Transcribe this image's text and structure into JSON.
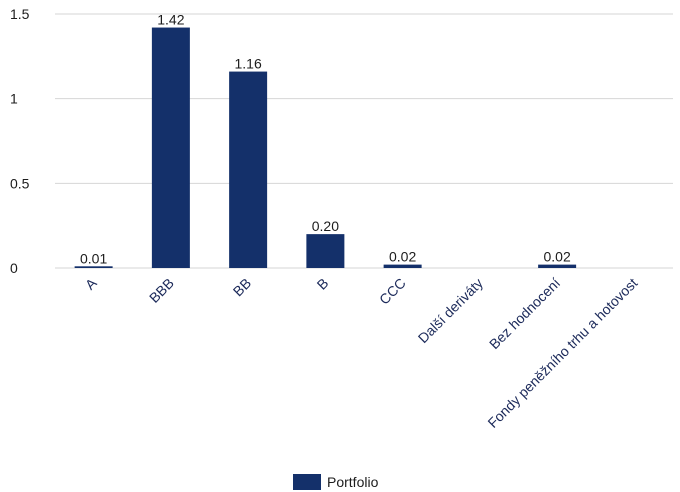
{
  "chart_data": {
    "type": "bar",
    "categories": [
      "A",
      "BBB",
      "BB",
      "B",
      "CCC",
      "Další deriváty",
      "Bez hodnocení",
      "Fondy peněžního trhu a hotovost"
    ],
    "series": [
      {
        "name": "Portfolio",
        "values": [
          0.01,
          1.42,
          1.16,
          0.2,
          0.02,
          null,
          0.02,
          null
        ],
        "color": "#14306a"
      }
    ],
    "data_labels": [
      "0.01",
      "1.42",
      "1.16",
      "0.20",
      "0.02",
      "",
      "0.02",
      ""
    ],
    "y_ticks": [
      "0",
      "0.5",
      "1",
      "1.5"
    ],
    "ylim": [
      0,
      1.5
    ],
    "grid": true,
    "legend_position": "bottom"
  }
}
